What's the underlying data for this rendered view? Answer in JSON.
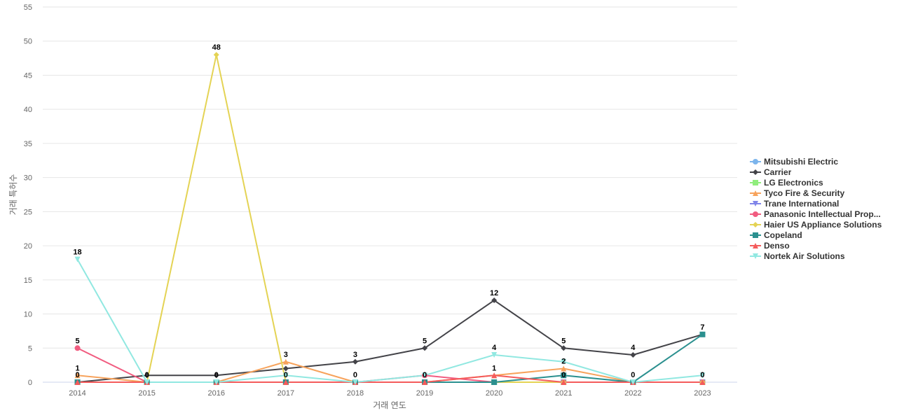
{
  "chart_data": {
    "type": "line",
    "xlabel": "거래 연도",
    "ylabel": "거래 특허수",
    "ylim": [
      0,
      55
    ],
    "yticks": [
      0,
      5,
      10,
      15,
      20,
      25,
      30,
      35,
      40,
      45,
      50,
      55
    ],
    "categories": [
      "2014",
      "2015",
      "2016",
      "2017",
      "2018",
      "2019",
      "2020",
      "2021",
      "2022",
      "2023"
    ],
    "grid": true,
    "legend_position": "right",
    "series": [
      {
        "name": "Mitsubishi Electric",
        "color": "#7cb5ec",
        "marker": "circle",
        "values": [
          0,
          0,
          0,
          0,
          0,
          0,
          0,
          0,
          0,
          0
        ],
        "labeled": []
      },
      {
        "name": "Carrier",
        "color": "#434348",
        "marker": "diamond",
        "values": [
          0,
          1,
          1,
          2,
          3,
          5,
          12,
          5,
          4,
          7
        ],
        "labeled": [
          4,
          5,
          6,
          7,
          8
        ]
      },
      {
        "name": "LG Electronics",
        "color": "#90ed7d",
        "marker": "square",
        "values": [
          0,
          0,
          0,
          0,
          0,
          0,
          0,
          0,
          0,
          0
        ],
        "labeled": []
      },
      {
        "name": "Tyco Fire & Security",
        "color": "#f7a35c",
        "marker": "triangle",
        "values": [
          1,
          0,
          0,
          3,
          0,
          0,
          1,
          2,
          0,
          0
        ],
        "labeled": [
          0,
          3,
          7
        ]
      },
      {
        "name": "Trane International",
        "color": "#8085e9",
        "marker": "triangle-down",
        "values": [
          0,
          0,
          0,
          0,
          0,
          0,
          0,
          0,
          0,
          0
        ],
        "labeled": []
      },
      {
        "name": "Panasonic Intellectual Prop...",
        "color": "#f15c80",
        "marker": "circle",
        "values": [
          5,
          0,
          0,
          0,
          0,
          1,
          0,
          0,
          0,
          0
        ],
        "labeled": [
          0
        ]
      },
      {
        "name": "Haier US Appliance Solutions",
        "color": "#e4d354",
        "marker": "diamond",
        "values": [
          0,
          0,
          48,
          0,
          0,
          0,
          0,
          0,
          0,
          0
        ],
        "labeled": [
          2
        ]
      },
      {
        "name": "Copeland",
        "color": "#2b908f",
        "marker": "square",
        "values": [
          0,
          0,
          0,
          0,
          0,
          0,
          0,
          1,
          0,
          7
        ],
        "labeled": [
          9
        ]
      },
      {
        "name": "Denso",
        "color": "#f45b5b",
        "marker": "triangle",
        "values": [
          0,
          0,
          0,
          0,
          0,
          0,
          1,
          0,
          0,
          0
        ],
        "labeled": [
          6
        ]
      },
      {
        "name": "Nortek Air Solutions",
        "color": "#91e8e1",
        "marker": "triangle-down",
        "values": [
          18,
          0,
          0,
          1,
          0,
          1,
          4,
          3,
          0,
          1
        ],
        "labeled": [
          0,
          6
        ]
      }
    ],
    "annotations": [
      {
        "category": "2014",
        "value": 0,
        "text": "0"
      },
      {
        "category": "2015",
        "value": 0,
        "text": "0"
      },
      {
        "category": "2016",
        "value": 0,
        "text": "0"
      },
      {
        "category": "2017",
        "value": 0,
        "text": "0"
      },
      {
        "category": "2018",
        "value": 0,
        "text": "0"
      },
      {
        "category": "2019",
        "value": 0,
        "text": "0"
      },
      {
        "category": "2021",
        "value": 0,
        "text": "0"
      },
      {
        "category": "2022",
        "value": 0,
        "text": "0"
      },
      {
        "category": "2023",
        "value": 0,
        "text": "0"
      }
    ]
  }
}
